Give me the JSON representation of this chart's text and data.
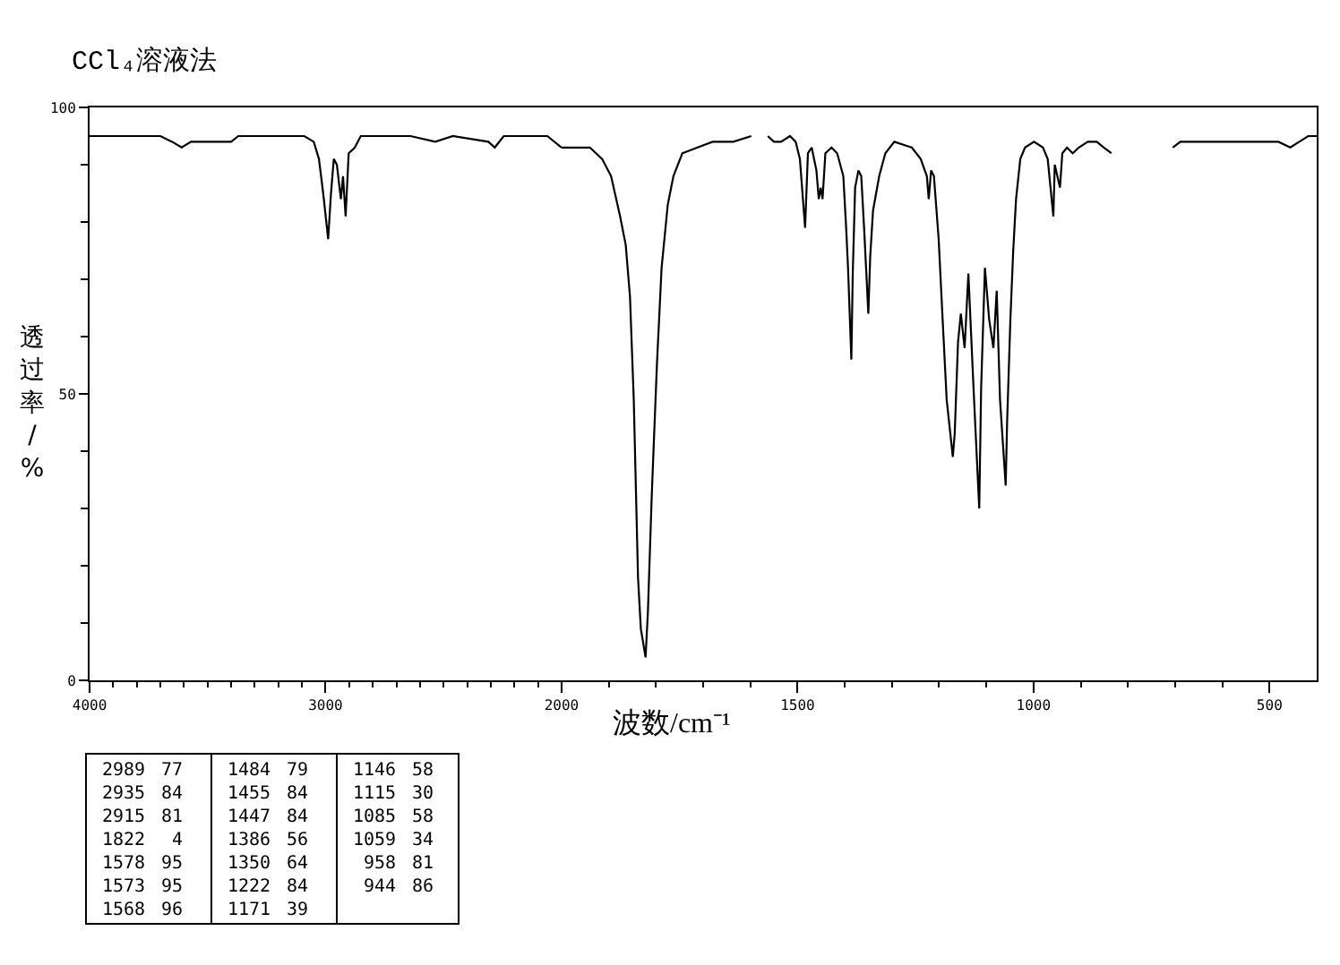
{
  "chart_data": [
    {
      "type": "line",
      "title": "CCl₄溶液法",
      "ylabel": "透过率/%",
      "x": [
        4000,
        3800,
        3700,
        3650,
        3610,
        3570,
        3400,
        3370,
        3170,
        3090,
        3050,
        3028,
        3010,
        2989,
        2977,
        2965,
        2952,
        2935,
        2926,
        2915,
        2902,
        2876,
        2851,
        2640,
        2535,
        2460,
        2310,
        2283,
        2245,
        2060,
        2000
      ],
      "values": [
        95,
        95,
        95,
        94,
        93,
        94,
        94,
        95,
        95,
        95,
        94,
        91,
        85,
        77,
        85,
        91,
        90,
        84,
        88,
        81,
        92,
        93,
        95,
        95,
        94,
        95,
        94,
        93,
        95,
        95,
        93
      ],
      "color": "#000000",
      "xlim": [
        4000,
        2000
      ],
      "xticks": [
        4000,
        {
          "value": 3900,
          "label": null
        },
        {
          "value": 3800,
          "label": null
        },
        {
          "value": 3700,
          "label": null
        },
        {
          "value": 3600,
          "label": null
        },
        {
          "value": 3500,
          "label": null
        },
        {
          "value": 3400,
          "label": null
        },
        {
          "value": 3300,
          "label": null
        },
        {
          "value": 3200,
          "label": null
        },
        {
          "value": 3100,
          "label": null
        },
        3000,
        {
          "value": 2900,
          "label": null
        },
        {
          "value": 2800,
          "label": null
        },
        {
          "value": 2700,
          "label": null
        },
        {
          "value": 2600,
          "label": null
        },
        {
          "value": 2500,
          "label": null
        },
        {
          "value": 2400,
          "label": null
        },
        {
          "value": 2300,
          "label": null
        },
        {
          "value": 2200,
          "label": null
        },
        {
          "value": 2100,
          "label": null
        }
      ],
      "ylim": [
        0,
        100
      ],
      "yticks": [
        0,
        {
          "value": 10,
          "label": null
        },
        {
          "value": 20,
          "label": null
        },
        {
          "value": 30,
          "label": null
        },
        {
          "value": 40,
          "label": null
        },
        50,
        {
          "value": 60,
          "label": null
        },
        {
          "value": 70,
          "label": null
        },
        {
          "value": 80,
          "label": null
        },
        {
          "value": 90,
          "label": null
        },
        100
      ],
      "annotations": [
        "2989",
        "77",
        "2935",
        "84",
        "2915",
        "81",
        "1822",
        "4",
        "1578",
        "95",
        "1573",
        "95",
        "1568",
        "96",
        "1484",
        "79",
        "1455",
        "84",
        "1447",
        "84",
        "1386",
        "56",
        "1350",
        "64",
        "1222",
        "84",
        "1171",
        "39",
        "1146",
        "58",
        "1115",
        "30",
        "1085",
        "58",
        "1059",
        "34",
        "958",
        "81",
        "944",
        "86"
      ]
    },
    {
      "type": "line",
      "xlabel": "波数/cm⁻¹",
      "x": [
        2000,
        1965,
        1940,
        1914,
        1895,
        1876,
        1864,
        1855,
        1847,
        1838,
        1832,
        1822,
        1817,
        1809,
        1798,
        1788,
        1775,
        1763,
        1744,
        1712,
        1680,
        1636,
        1598,
        1580,
        1563,
        1550,
        1535,
        1516,
        1504,
        1495,
        1484,
        1478,
        1470,
        1460,
        1455,
        1451,
        1447,
        1441,
        1428,
        1416,
        1403,
        1397,
        1393,
        1386,
        1383,
        1378,
        1371,
        1365,
        1359,
        1350,
        1346,
        1340,
        1327,
        1314,
        1295,
        1258,
        1239,
        1226,
        1222,
        1217,
        1211,
        1201,
        1192,
        1184,
        1171,
        1167,
        1160,
        1154,
        1146,
        1138,
        1126,
        1115,
        1111,
        1103,
        1094,
        1085,
        1078,
        1071,
        1059,
        1056,
        1049,
        1043,
        1037,
        1028,
        1018,
        999,
        980,
        970,
        958,
        955,
        944,
        939,
        929,
        917,
        904,
        885,
        866,
        851,
        835,
        770,
        705,
        689,
        652,
        601,
        551,
        513,
        481,
        456,
        437,
        418,
        400
      ],
      "values": [
        93,
        93,
        93,
        91,
        88,
        81,
        76,
        67,
        49,
        18,
        9,
        4,
        12,
        32,
        55,
        72,
        83,
        88,
        92,
        93,
        94,
        94,
        95,
        null,
        95,
        94,
        94,
        95,
        94,
        91,
        79,
        92,
        93,
        89,
        84,
        86,
        84,
        92,
        93,
        92,
        88,
        79,
        72,
        56,
        71,
        86,
        89,
        88,
        79,
        64,
        74,
        82,
        88,
        92,
        94,
        93,
        91,
        88,
        84,
        89,
        88,
        77,
        62,
        49,
        39,
        43,
        59,
        64,
        58,
        71,
        49,
        30,
        51,
        72,
        63,
        58,
        68,
        49,
        34,
        45,
        63,
        75,
        84,
        91,
        93,
        94,
        93,
        91,
        81,
        90,
        86,
        92,
        93,
        92,
        93,
        94,
        94,
        93,
        92,
        null,
        93,
        94,
        94,
        94,
        94,
        94,
        94,
        93,
        94,
        95,
        95
      ],
      "color": "#000000",
      "xlim": [
        2000,
        400
      ],
      "xticks": [
        2000,
        {
          "value": 1900,
          "label": null
        },
        {
          "value": 1800,
          "label": null
        },
        {
          "value": 1700,
          "label": null
        },
        {
          "value": 1600,
          "label": null
        },
        1500,
        {
          "value": 1400,
          "label": null
        },
        {
          "value": 1300,
          "label": null
        },
        {
          "value": 1200,
          "label": null
        },
        {
          "value": 1100,
          "label": null
        },
        1000,
        {
          "value": 900,
          "label": null
        },
        {
          "value": 800,
          "label": null
        },
        {
          "value": 700,
          "label": null
        },
        {
          "value": 600,
          "label": null
        },
        500
      ],
      "ylim": [
        0,
        100
      ],
      "tick_labels": "x"
    }
  ]
}
